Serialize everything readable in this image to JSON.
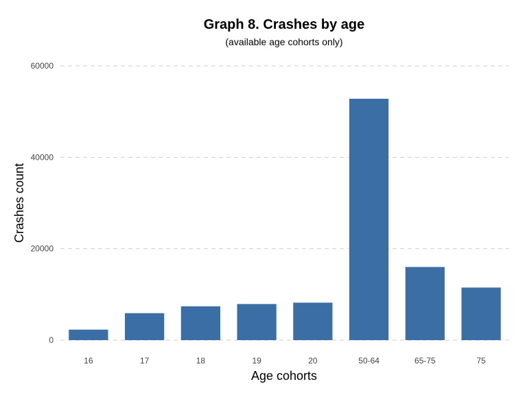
{
  "chart_data": {
    "type": "bar",
    "title": "Graph 8. Crashes by age",
    "subtitle": "(available age cohorts only)",
    "xlabel": "Age cohorts",
    "ylabel": "Crashes count",
    "categories": [
      "16",
      "17",
      "18",
      "19",
      "20",
      "50-64",
      "65-75",
      "75"
    ],
    "values": [
      2300,
      5900,
      7400,
      7900,
      8200,
      52800,
      16000,
      11500
    ],
    "ylim": [
      0,
      60000
    ],
    "yticks": [
      "0",
      "20000",
      "40000",
      "60000"
    ],
    "ytick_values": [
      0,
      20000,
      40000,
      60000
    ],
    "grid": true,
    "legend": "none",
    "bar_color": "#3a6ea5"
  }
}
